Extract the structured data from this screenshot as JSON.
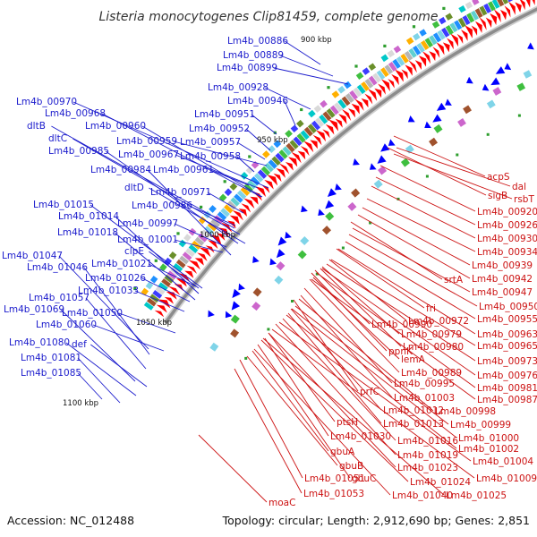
{
  "title": "Listeria monocytogenes Clip81459, complete genome",
  "footer": {
    "accession": "Accession: NC_012488",
    "summary": "Topology: circular; Length: 2,912,690 bp; Genes: 2,851"
  },
  "colors": {
    "forward": "#ff0000",
    "reverse": "#0000ff",
    "backbone": "#8c8c8c",
    "label_left": "#1a1acc",
    "label_right": "#cc1111"
  },
  "kbp_marks": [
    "900 kbp",
    "950 kbp",
    "1000 kbp",
    "1050 kbp",
    "1100 kbp"
  ],
  "left_labels": [
    "Lm4b_00886",
    "Lm4b_00889",
    "Lm4b_00899",
    "Lm4b_00928",
    "Lm4b_00970",
    "Lm4b_00946",
    "Lm4b_00968",
    "Lm4b_00951",
    "dltB",
    "Lm4b_00960",
    "Lm4b_00952",
    "dltC",
    "Lm4b_00959",
    "Lm4b_00957",
    "Lm4b_00985",
    "Lm4b_00967",
    "Lm4b_00958",
    "Lm4b_00984",
    "Lm4b_00961",
    "dltD",
    "Lm4b_00971",
    "Lm4b_01015",
    "Lm4b_00986",
    "Lm4b_01014",
    "Lm4b_00997",
    "Lm4b_01018",
    "Lm4b_01001",
    "clpE",
    "Lm4b_01047",
    "Lm4b_01021",
    "Lm4b_01046",
    "Lm4b_01026",
    "Lm4b_01033",
    "Lm4b_01057",
    "Lm4b_01069",
    "Lm4b_01050",
    "Lm4b_01060",
    "Lm4b_01080",
    "def",
    "Lm4b_01081",
    "Lm4b_01085"
  ],
  "right_labels": [
    "acpS",
    "dal",
    "sigB",
    "rsbT",
    "Lm4b_00920",
    "Lm4b_00926",
    "Lm4b_00930",
    "Lm4b_00934",
    "Lm4b_00939",
    "srtA",
    "Lm4b_00942",
    "Lm4b_00947",
    "Lm4b_00950",
    "fri",
    "Lm4b_00955",
    "Lm4b_00972",
    "Lm4b_00990",
    "Lm4b_00963",
    "Lm4b_00979",
    "Lm4b_00980",
    "Lm4b_00965",
    "ppnK",
    "lemA",
    "Lm4b_00973",
    "Lm4b_00989",
    "Lm4b_00976",
    "Lm4b_00995",
    "Lm4b_00981",
    "prfC",
    "Lm4b_01003",
    "Lm4b_00987",
    "Lm4b_01012",
    "Lm4b_00998",
    "Lm4b_01013",
    "Lm4b_00999",
    "ptsH",
    "Lm4b_01030",
    "Lm4b_01016",
    "Lm4b_01000",
    "Lm4b_01002",
    "gbuA",
    "Lm4b_01019",
    "Lm4b_01004",
    "gbuB",
    "Lm4b_01023",
    "Lm4b_01051",
    "gbuC",
    "Lm4b_01024",
    "Lm4b_01009",
    "Lm4b_01053",
    "Lm4b_01040",
    "Lm4b_01025",
    "moaC"
  ]
}
